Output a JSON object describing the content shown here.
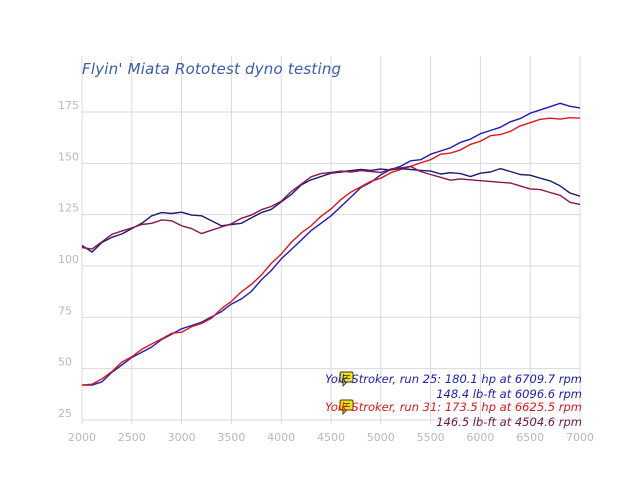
{
  "chart_data": {
    "type": "line",
    "title": "Flyin' Miata Rototest dyno testing",
    "xlabel": "",
    "ylabel": "",
    "xlim": [
      2000,
      7000
    ],
    "ylim": [
      25,
      185
    ],
    "x_ticks": [
      2000,
      2500,
      3000,
      3500,
      4000,
      4500,
      5000,
      5500,
      6000,
      6500,
      7000
    ],
    "y_ticks": [
      25,
      50,
      75,
      100,
      125,
      150,
      175
    ],
    "grid": {
      "vertical": true,
      "horizontal": true
    },
    "legend": {
      "placement": "bottom-right",
      "entries": [
        {
          "name": "Yolk Stroker, run 25: 180.1 hp at 6709.7 rpm",
          "sub": "148.4 lb-ft at 6096.6 rpm",
          "color": "#1c1cb8",
          "sub_color": "#1c1cb8",
          "icon": "note-icon"
        },
        {
          "name": "Yolk Stroker, run 31: 173.5 hp at 6625.5 rpm",
          "sub": "146.5 lb-ft at 4504.6 rpm",
          "color": "#e01818",
          "sub_color": "#6a1a4a",
          "icon": "note-icon"
        }
      ]
    },
    "series": [
      {
        "key": "hp25",
        "color": "#1c1cb8",
        "x": [
          2000,
          2100,
          2200,
          2300,
          2400,
          2500,
          2600,
          2700,
          2800,
          2900,
          3000,
          3100,
          3200,
          3300,
          3400,
          3500,
          3600,
          3700,
          3800,
          3900,
          4000,
          4100,
          4200,
          4300,
          4400,
          4500,
          4600,
          4700,
          4800,
          4900,
          5000,
          5100,
          5200,
          5300,
          5400,
          5500,
          5600,
          5700,
          5800,
          5900,
          6000,
          6100,
          6200,
          6300,
          6400,
          6500,
          6600,
          6700,
          6800,
          6900,
          7000
        ],
        "y": [
          42,
          42,
          44,
          48,
          52,
          55,
          58,
          61,
          64,
          67,
          69,
          71,
          73,
          75,
          78,
          81,
          84,
          88,
          93,
          98,
          103,
          108,
          113,
          117,
          121,
          124,
          129,
          134,
          138,
          141,
          144,
          147,
          149,
          151,
          152,
          154,
          156,
          158,
          160,
          162,
          164,
          166,
          168,
          170,
          172,
          174,
          176,
          178,
          179,
          178,
          177
        ]
      },
      {
        "key": "hp31",
        "color": "#e01818",
        "x": [
          2000,
          2100,
          2200,
          2300,
          2400,
          2500,
          2600,
          2700,
          2800,
          2900,
          3000,
          3100,
          3200,
          3300,
          3400,
          3500,
          3600,
          3700,
          3800,
          3900,
          4000,
          4100,
          4200,
          4300,
          4400,
          4500,
          4600,
          4700,
          4800,
          4900,
          5000,
          5100,
          5200,
          5300,
          5400,
          5500,
          5600,
          5700,
          5800,
          5900,
          6000,
          6100,
          6200,
          6300,
          6400,
          6500,
          6600,
          6700,
          6800,
          6900,
          7000
        ],
        "y": [
          42,
          42,
          45,
          49,
          53,
          56,
          59,
          62,
          65,
          67,
          68,
          70,
          72,
          75,
          79,
          83,
          87,
          91,
          96,
          101,
          106,
          111,
          116,
          120,
          124,
          128,
          132,
          136,
          139,
          141,
          143,
          145,
          147,
          149,
          150,
          152,
          154,
          155,
          157,
          159,
          161,
          163,
          164,
          166,
          168,
          170,
          171,
          172,
          172,
          172,
          172
        ]
      },
      {
        "key": "tq25",
        "color": "#1c1c70",
        "x": [
          2000,
          2100,
          2200,
          2300,
          2400,
          2500,
          2600,
          2700,
          2800,
          2900,
          3000,
          3100,
          3200,
          3300,
          3400,
          3500,
          3600,
          3700,
          3800,
          3900,
          4000,
          4100,
          4200,
          4300,
          4400,
          4500,
          4600,
          4700,
          4800,
          4900,
          5000,
          5100,
          5200,
          5300,
          5400,
          5500,
          5600,
          5700,
          5800,
          5900,
          6000,
          6100,
          6200,
          6300,
          6400,
          6500,
          6600,
          6700,
          6800,
          6900,
          7000
        ],
        "y": [
          110,
          107,
          111,
          114,
          116,
          118,
          121,
          124,
          126,
          126,
          126,
          125,
          124,
          122,
          120,
          120,
          121,
          123,
          126,
          128,
          131,
          135,
          139,
          142,
          144,
          145,
          146,
          146,
          147,
          147,
          147,
          147,
          147,
          147,
          147,
          146,
          145,
          145,
          145,
          144,
          145,
          146,
          147,
          146,
          145,
          144,
          143,
          141,
          139,
          136,
          134
        ]
      },
      {
        "key": "tq31",
        "color": "#8a1650",
        "x": [
          2000,
          2100,
          2200,
          2300,
          2400,
          2500,
          2600,
          2700,
          2800,
          2900,
          3000,
          3100,
          3200,
          3300,
          3400,
          3500,
          3600,
          3700,
          3800,
          3900,
          4000,
          4100,
          4200,
          4300,
          4400,
          4500,
          4600,
          4700,
          4800,
          4900,
          5000,
          5100,
          5200,
          5300,
          5400,
          5500,
          5600,
          5700,
          5800,
          5900,
          6000,
          6100,
          6200,
          6300,
          6400,
          6500,
          6600,
          6700,
          6800,
          6900,
          7000
        ],
        "y": [
          109,
          108,
          112,
          115,
          117,
          119,
          120,
          121,
          122,
          122,
          120,
          118,
          116,
          117,
          119,
          121,
          123,
          125,
          127,
          129,
          132,
          136,
          140,
          143,
          145,
          146,
          146,
          146,
          146,
          146,
          146,
          147,
          148,
          148,
          146,
          145,
          143,
          142,
          142,
          142,
          142,
          141,
          141,
          140,
          139,
          138,
          137,
          136,
          134,
          131,
          130
        ]
      }
    ]
  }
}
